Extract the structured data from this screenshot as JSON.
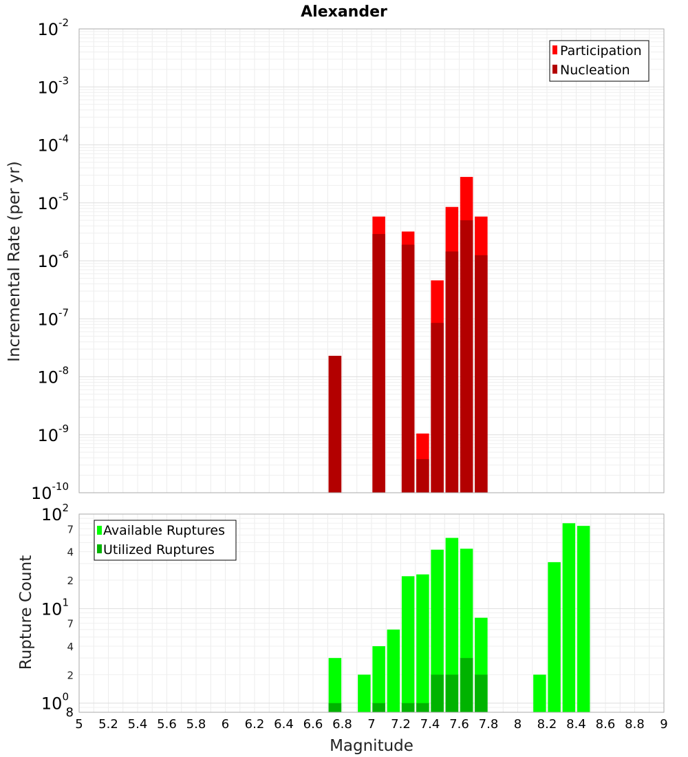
{
  "chart_data": [
    {
      "type": "bar",
      "title": "Alexander",
      "ylabel": "Incremental Rate (per yr)",
      "yscale": "log",
      "xlim": [
        5,
        9
      ],
      "ylim": [
        1e-10,
        0.01
      ],
      "grid": true,
      "legend_position": "top-right",
      "y_ticks": [
        {
          "base": "10",
          "exp": "-10",
          "value": 1e-10
        },
        {
          "base": "10",
          "exp": "-9",
          "value": 1e-09
        },
        {
          "base": "10",
          "exp": "-8",
          "value": 1e-08
        },
        {
          "base": "10",
          "exp": "-7",
          "value": 1e-07
        },
        {
          "base": "10",
          "exp": "-6",
          "value": 1e-06
        },
        {
          "base": "10",
          "exp": "-5",
          "value": 1e-05
        },
        {
          "base": "10",
          "exp": "-4",
          "value": 0.0001
        },
        {
          "base": "10",
          "exp": "-3",
          "value": 0.001
        },
        {
          "base": "10",
          "exp": "-2",
          "value": 0.01
        }
      ],
      "series": [
        {
          "name": "Participation",
          "color": "#ff0000",
          "x": [
            6.75,
            7.05,
            7.25,
            7.35,
            7.45,
            7.55,
            7.65,
            7.75
          ],
          "values": [
            2.3e-08,
            5.8e-06,
            3.2e-06,
            1.05e-09,
            4.6e-07,
            8.5e-06,
            2.8e-05,
            5.8e-06
          ]
        },
        {
          "name": "Nucleation",
          "color": "#b30000",
          "x": [
            6.75,
            7.05,
            7.25,
            7.35,
            7.45,
            7.55,
            7.65,
            7.75
          ],
          "values": [
            2.3e-08,
            2.9e-06,
            1.9e-06,
            3.8e-10,
            8.5e-08,
            1.45e-06,
            5e-06,
            1.25e-06
          ]
        }
      ]
    },
    {
      "type": "bar",
      "xlabel": "Magnitude",
      "ylabel": "Rupture Count",
      "yscale": "log",
      "xlim": [
        5,
        9
      ],
      "ylim": [
        0.8,
        100
      ],
      "grid": true,
      "legend_position": "top-left",
      "x_ticks": [
        "5",
        "5.2",
        "5.4",
        "5.6",
        "5.8",
        "6",
        "6.2",
        "6.4",
        "6.6",
        "6.8",
        "7",
        "7.2",
        "7.4",
        "7.6",
        "7.8",
        "8",
        "8.2",
        "8.4",
        "8.6",
        "8.8",
        "9"
      ],
      "y_major_ticks": [
        {
          "base": "10",
          "exp": "0",
          "value": 1
        },
        {
          "base": "10",
          "exp": "1",
          "value": 10
        },
        {
          "base": "10",
          "exp": "2",
          "value": 100
        }
      ],
      "y_minor_ticks": [
        {
          "label": "8",
          "value": 0.8
        },
        {
          "label": "2",
          "value": 2
        },
        {
          "label": "4",
          "value": 4
        },
        {
          "label": "7",
          "value": 7
        },
        {
          "label": "2",
          "value": 20
        },
        {
          "label": "4",
          "value": 40
        },
        {
          "label": "7",
          "value": 70
        }
      ],
      "series": [
        {
          "name": "Available Ruptures",
          "color": "#00ff00",
          "x": [
            6.75,
            6.95,
            7.05,
            7.15,
            7.25,
            7.35,
            7.45,
            7.55,
            7.65,
            7.75,
            8.15,
            8.25,
            8.35,
            8.45
          ],
          "values": [
            3,
            2,
            4,
            6,
            22,
            23,
            42,
            56,
            43,
            8,
            2,
            31,
            80,
            75
          ]
        },
        {
          "name": "Utilized Ruptures",
          "color": "#00b300",
          "x": [
            6.75,
            7.05,
            7.25,
            7.35,
            7.45,
            7.55,
            7.65,
            7.75
          ],
          "values": [
            1,
            1,
            1,
            1,
            2,
            2,
            3,
            2
          ]
        }
      ]
    }
  ]
}
